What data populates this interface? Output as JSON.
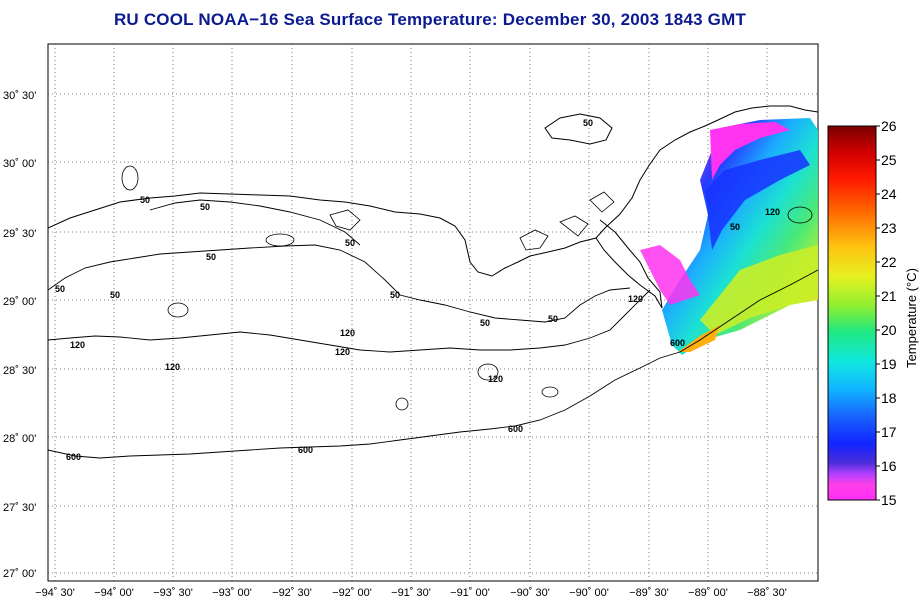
{
  "title": "RU COOL  NOAA−16  Sea Surface Temperature:  December 30, 2003 1843 GMT",
  "lat_labels": [
    "30˚ 30'",
    "30˚ 00'",
    "29˚ 30'",
    "29˚ 00'",
    "28˚ 30'",
    "28˚ 00'",
    "27˚ 30'",
    "27˚ 00'"
  ],
  "lon_labels": [
    "−94˚ 30'",
    "−94˚ 00'",
    "−93˚ 30'",
    "−93˚ 00'",
    "−92˚ 30'",
    "−92˚ 00'",
    "−91˚ 30'",
    "−91˚ 00'",
    "−90˚ 30'",
    "−90˚ 00'",
    "−89˚ 30'",
    "−89˚ 00'",
    "−88˚ 30'"
  ],
  "contour_labels": {
    "c50": "50",
    "c120": "120",
    "c600": "600"
  },
  "colorbar": {
    "title": "Temperature (°C)",
    "ticks": [
      "26",
      "25",
      "24",
      "23",
      "22",
      "21",
      "20",
      "19",
      "18",
      "17",
      "16",
      "15"
    ],
    "min": 15,
    "max": 26
  },
  "colors": {
    "title": "#0b1b8f",
    "grid": "#555555"
  }
}
